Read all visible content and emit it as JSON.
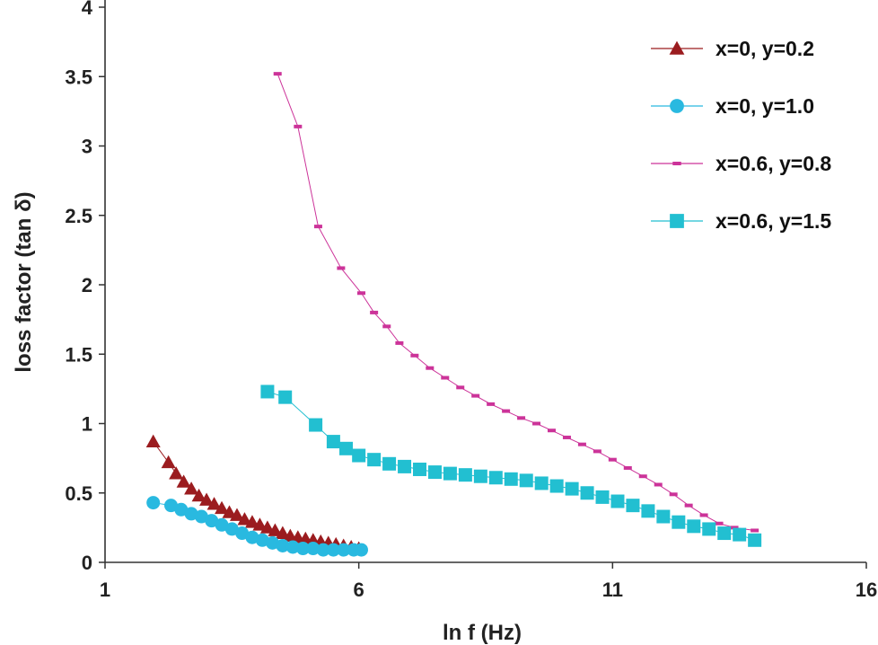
{
  "chart_data": {
    "type": "scatter",
    "title": "",
    "xlabel": "ln f (Hz)",
    "ylabel": "loss factor (tan δ)",
    "xlim": [
      1,
      16
    ],
    "ylim": [
      0,
      4
    ],
    "xticks": [
      "1",
      "6",
      "11",
      "16"
    ],
    "yticks": [
      "0",
      "0.5",
      "1",
      "1.5",
      "2",
      "2.5",
      "3",
      "3.5",
      "4"
    ],
    "grid": false,
    "legend_position": "top-right",
    "series": [
      {
        "name": "x=0, y=0.2",
        "marker": "triangle",
        "color": "#9b1c1f",
        "x": [
          1.95,
          2.25,
          2.4,
          2.55,
          2.7,
          2.85,
          3.0,
          3.15,
          3.3,
          3.45,
          3.6,
          3.75,
          3.9,
          4.05,
          4.2,
          4.35,
          4.5,
          4.65,
          4.8,
          4.95,
          5.1,
          5.25,
          5.4,
          5.55,
          5.7,
          5.85,
          6.0
        ],
        "y": [
          0.87,
          0.72,
          0.64,
          0.58,
          0.53,
          0.48,
          0.45,
          0.42,
          0.39,
          0.36,
          0.34,
          0.31,
          0.29,
          0.27,
          0.25,
          0.23,
          0.21,
          0.19,
          0.18,
          0.17,
          0.16,
          0.15,
          0.14,
          0.13,
          0.12,
          0.11,
          0.1
        ]
      },
      {
        "name": "x=0, y=1.0",
        "marker": "circle",
        "color": "#29b9e0",
        "x": [
          1.95,
          2.3,
          2.5,
          2.7,
          2.9,
          3.1,
          3.3,
          3.5,
          3.7,
          3.9,
          4.1,
          4.3,
          4.5,
          4.7,
          4.9,
          5.1,
          5.3,
          5.5,
          5.7,
          5.9,
          6.05
        ],
        "y": [
          0.43,
          0.41,
          0.38,
          0.35,
          0.33,
          0.3,
          0.27,
          0.24,
          0.21,
          0.18,
          0.16,
          0.14,
          0.12,
          0.11,
          0.1,
          0.1,
          0.09,
          0.09,
          0.09,
          0.09,
          0.09
        ]
      },
      {
        "name": "x=0.6, y=0.8",
        "marker": "dash",
        "color": "#cc3399",
        "x": [
          4.4,
          4.8,
          5.2,
          5.65,
          6.05,
          6.3,
          6.55,
          6.8,
          7.1,
          7.4,
          7.7,
          8.0,
          8.3,
          8.6,
          8.9,
          9.2,
          9.5,
          9.8,
          10.1,
          10.4,
          10.7,
          11.0,
          11.3,
          11.6,
          11.9,
          12.2,
          12.5,
          12.8,
          13.1,
          13.4,
          13.8
        ],
        "y": [
          3.52,
          3.14,
          2.42,
          2.12,
          1.94,
          1.8,
          1.7,
          1.58,
          1.49,
          1.4,
          1.33,
          1.26,
          1.2,
          1.14,
          1.09,
          1.04,
          1.0,
          0.95,
          0.9,
          0.85,
          0.8,
          0.74,
          0.68,
          0.62,
          0.56,
          0.49,
          0.41,
          0.34,
          0.28,
          0.25,
          0.23
        ]
      },
      {
        "name": "x=0.6, y=1.5",
        "marker": "square",
        "color": "#22bfd1",
        "x": [
          4.2,
          4.55,
          5.15,
          5.5,
          5.75,
          6.0,
          6.3,
          6.6,
          6.9,
          7.2,
          7.5,
          7.8,
          8.1,
          8.4,
          8.7,
          9.0,
          9.3,
          9.6,
          9.9,
          10.2,
          10.5,
          10.8,
          11.1,
          11.4,
          11.7,
          12.0,
          12.3,
          12.6,
          12.9,
          13.2,
          13.5,
          13.8
        ],
        "y": [
          1.23,
          1.19,
          0.99,
          0.87,
          0.82,
          0.77,
          0.74,
          0.71,
          0.69,
          0.67,
          0.65,
          0.64,
          0.63,
          0.62,
          0.61,
          0.6,
          0.59,
          0.57,
          0.55,
          0.53,
          0.5,
          0.47,
          0.44,
          0.41,
          0.37,
          0.33,
          0.29,
          0.26,
          0.24,
          0.21,
          0.2,
          0.16
        ]
      }
    ]
  }
}
